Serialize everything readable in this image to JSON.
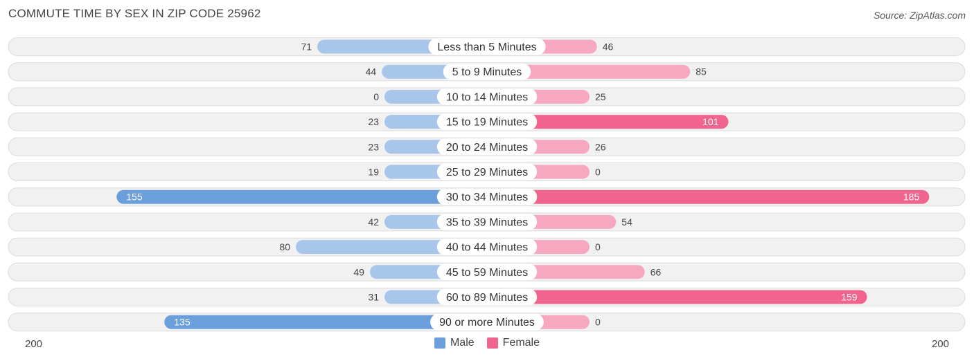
{
  "header": {
    "title": "COMMUTE TIME BY SEX IN ZIP CODE 25962",
    "source": "Source: ZipAtlas.com"
  },
  "legend": {
    "male_label": "Male",
    "female_label": "Female"
  },
  "axis": {
    "left_label": "200",
    "right_label": "200"
  },
  "colors": {
    "male_strong": "#6a9fdc",
    "male_light": "#a7c6ea",
    "female_strong": "#f0648f",
    "female_light": "#f5a8c0",
    "row_bg": "#f1f1f1",
    "row_border": "#dcdcdc"
  },
  "chart_data": {
    "type": "bar",
    "orientation": "horizontal-diverging",
    "title": "COMMUTE TIME BY SEX IN ZIP CODE 25962",
    "xlim": [
      -200,
      200
    ],
    "categories": [
      "Less than 5 Minutes",
      "5 to 9 Minutes",
      "10 to 14 Minutes",
      "15 to 19 Minutes",
      "20 to 24 Minutes",
      "25 to 29 Minutes",
      "30 to 34 Minutes",
      "35 to 39 Minutes",
      "40 to 44 Minutes",
      "45 to 59 Minutes",
      "60 to 89 Minutes",
      "90 or more Minutes"
    ],
    "series": [
      {
        "name": "Male",
        "values": [
          71,
          44,
          0,
          23,
          23,
          19,
          155,
          42,
          80,
          49,
          31,
          135
        ]
      },
      {
        "name": "Female",
        "values": [
          46,
          85,
          25,
          101,
          26,
          0,
          185,
          54,
          0,
          66,
          159,
          0
        ]
      }
    ],
    "legend_position": "bottom-center"
  }
}
